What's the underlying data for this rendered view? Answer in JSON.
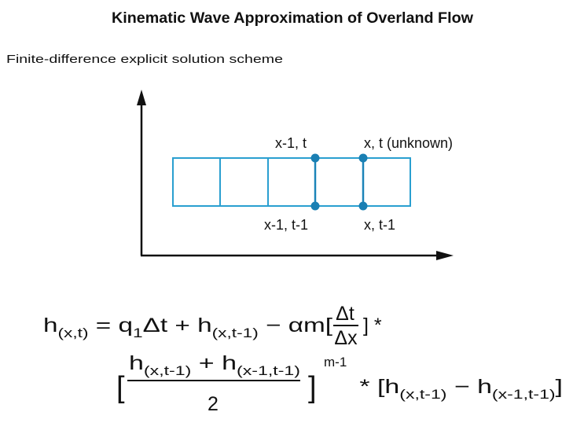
{
  "title": "Kinematic Wave Approximation of Overland Flow",
  "subtitle": "Finite-difference explicit solution scheme",
  "grid_labels": [
    "x-1, t",
    "x, t (unknown)",
    "x-1, t-1",
    "x, t-1"
  ],
  "equation": {
    "line1": [
      "h",
      "(x,t)",
      " = q",
      "1",
      "Δt + h",
      "(x,t-1)",
      " − αm["
    ],
    "line1_fraction": [
      "Δt",
      "Δx"
    ],
    "line1_end": "] *",
    "line2_open": "[",
    "line2_numerator": [
      "h",
      "(x,t-1)",
      " + h",
      "(x-1,t-1)"
    ],
    "line2_denominator": "2",
    "line2_close": "]",
    "line2_exponent": "m-1",
    "line2_end": [
      " * [h",
      "(x,t-1)",
      " − h",
      "(x-1,t-1)",
      "]"
    ]
  }
}
